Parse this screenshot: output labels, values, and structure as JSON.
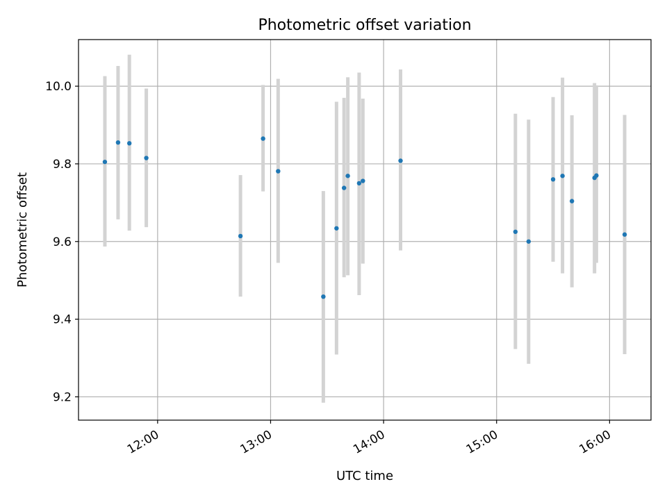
{
  "chart_data": {
    "type": "scatter",
    "title": "Photometric offset variation",
    "xlabel": "UTC time",
    "ylabel": "Photometric offset",
    "x_unit": "UTC time (HH:MM)",
    "xlim": [
      "11:18",
      "16:22"
    ],
    "ylim": [
      9.14,
      10.12
    ],
    "x_ticks": [
      "12:00",
      "13:00",
      "14:00",
      "15:00",
      "16:00"
    ],
    "y_ticks": [
      9.2,
      9.4,
      9.6,
      9.8,
      10.0
    ],
    "grid": true,
    "point_color": "#1f77b4",
    "errorbar_color": "#d3d3d3",
    "points": [
      {
        "x": "11:32",
        "y": 9.805,
        "low": 9.587,
        "high": 10.026
      },
      {
        "x": "11:39",
        "y": 9.855,
        "low": 9.657,
        "high": 10.052
      },
      {
        "x": "11:45",
        "y": 9.853,
        "low": 9.628,
        "high": 10.081
      },
      {
        "x": "11:54",
        "y": 9.815,
        "low": 9.637,
        "high": 9.994
      },
      {
        "x": "12:44",
        "y": 9.614,
        "low": 9.458,
        "high": 9.771
      },
      {
        "x": "12:56",
        "y": 9.865,
        "low": 9.729,
        "high": 10.003
      },
      {
        "x": "13:04",
        "y": 9.781,
        "low": 9.545,
        "high": 10.019
      },
      {
        "x": "13:28",
        "y": 9.458,
        "low": 9.185,
        "high": 9.73
      },
      {
        "x": "13:35",
        "y": 9.634,
        "low": 9.309,
        "high": 9.96
      },
      {
        "x": "13:39",
        "y": 9.738,
        "low": 9.508,
        "high": 9.97
      },
      {
        "x": "13:41",
        "y": 9.769,
        "low": 9.513,
        "high": 10.023
      },
      {
        "x": "13:47",
        "y": 9.75,
        "low": 9.462,
        "high": 10.035
      },
      {
        "x": "13:49",
        "y": 9.756,
        "low": 9.543,
        "high": 9.968
      },
      {
        "x": "14:09",
        "y": 9.808,
        "low": 9.577,
        "high": 10.043
      },
      {
        "x": "15:10",
        "y": 9.625,
        "low": 9.323,
        "high": 9.929
      },
      {
        "x": "15:17",
        "y": 9.6,
        "low": 9.285,
        "high": 9.914
      },
      {
        "x": "15:30",
        "y": 9.76,
        "low": 9.548,
        "high": 9.972
      },
      {
        "x": "15:35",
        "y": 9.769,
        "low": 9.518,
        "high": 10.022
      },
      {
        "x": "15:40",
        "y": 9.704,
        "low": 9.482,
        "high": 9.925
      },
      {
        "x": "15:52",
        "y": 9.764,
        "low": 9.518,
        "high": 10.008
      },
      {
        "x": "15:53",
        "y": 9.77,
        "low": 9.545,
        "high": 10.002
      },
      {
        "x": "16:08",
        "y": 9.618,
        "low": 9.31,
        "high": 9.926
      }
    ]
  }
}
